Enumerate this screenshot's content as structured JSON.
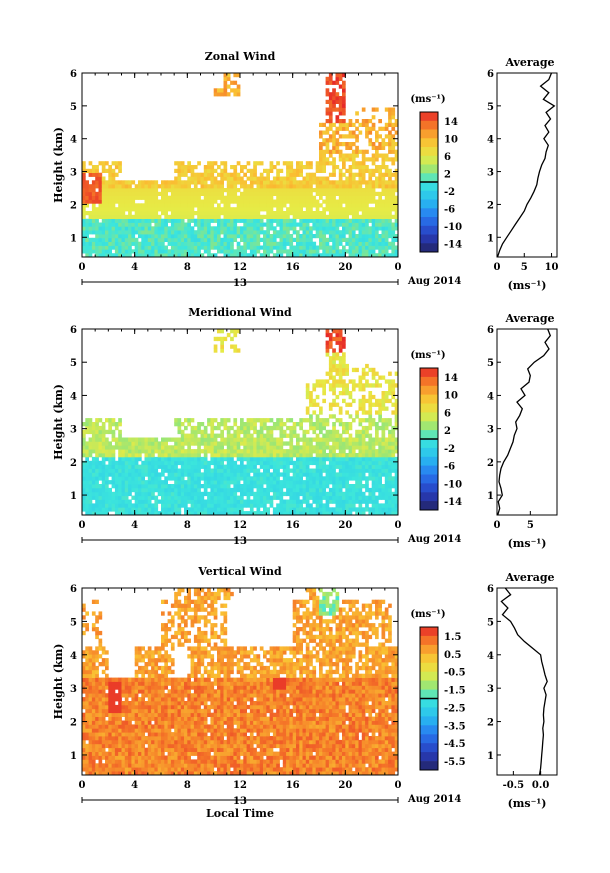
{
  "chart_data": [
    {
      "type": "heatmap",
      "title": "Zonal Wind",
      "ylabel": "Height (km)",
      "y_ticks": [
        "1",
        "2",
        "3",
        "4",
        "5",
        "6"
      ],
      "x_ticks": [
        "0",
        "4",
        "8",
        "12",
        "16",
        "20",
        "0"
      ],
      "date_mark": "13",
      "date_label": "Aug 2014",
      "xlim": [
        0,
        24
      ],
      "ylim": [
        0.4,
        6
      ],
      "colorbar": {
        "unit": "(ms⁻¹)",
        "ticks": [
          "14",
          "10",
          "6",
          "2",
          "-2",
          "-6",
          "-10",
          "-14"
        ],
        "range": [
          -16,
          16
        ]
      },
      "colormap": "jet",
      "approx_field": {
        "description_free_data": true,
        "low_layer_values_ms": {
          "height_km": [
            0.5,
            1.0,
            1.5,
            2.0,
            2.5,
            3.0,
            4.0,
            5.0,
            5.8
          ],
          "typical": [
            0,
            2,
            3,
            5,
            7,
            8,
            9,
            9,
            8
          ]
        }
      },
      "average_profile": {
        "title": "Average",
        "xlabel": "(ms⁻¹)",
        "x_ticks": [
          "0",
          "5",
          "10"
        ],
        "xlim": [
          0,
          11
        ],
        "height_km": [
          0.4,
          0.6,
          0.8,
          1.0,
          1.2,
          1.4,
          1.6,
          1.8,
          2.0,
          2.2,
          2.4,
          2.6,
          2.8,
          3.0,
          3.2,
          3.4,
          3.6,
          3.8,
          4.0,
          4.2,
          4.4,
          4.6,
          4.8,
          5.0,
          5.2,
          5.4,
          5.6,
          5.8,
          6.0
        ],
        "values": [
          0.1,
          0.5,
          1.0,
          1.8,
          2.6,
          3.4,
          4.2,
          5.0,
          5.5,
          6.2,
          6.8,
          7.3,
          7.5,
          7.8,
          8.2,
          8.8,
          9.0,
          9.4,
          8.6,
          9.5,
          8.8,
          9.8,
          9.0,
          10.5,
          8.5,
          9.5,
          8.0,
          9.5,
          10.0
        ]
      }
    },
    {
      "type": "heatmap",
      "title": "Meridional Wind",
      "ylabel": "Height (km)",
      "y_ticks": [
        "1",
        "2",
        "3",
        "4",
        "5",
        "6"
      ],
      "x_ticks": [
        "0",
        "4",
        "8",
        "12",
        "16",
        "20",
        "0"
      ],
      "date_mark": "13",
      "date_label": "Aug 2014",
      "xlim": [
        0,
        24
      ],
      "ylim": [
        0.4,
        6
      ],
      "colorbar": {
        "unit": "(ms⁻¹)",
        "ticks": [
          "14",
          "10",
          "6",
          "2",
          "-2",
          "-6",
          "-10",
          "-14"
        ],
        "range": [
          -16,
          16
        ]
      },
      "colormap": "jet",
      "average_profile": {
        "title": "Average",
        "xlabel": "(ms⁻¹)",
        "x_ticks": [
          "0",
          "5"
        ],
        "xlim": [
          0,
          9
        ],
        "height_km": [
          0.4,
          0.6,
          0.8,
          1.0,
          1.2,
          1.4,
          1.6,
          1.8,
          2.0,
          2.2,
          2.4,
          2.6,
          2.8,
          3.0,
          3.2,
          3.4,
          3.6,
          3.8,
          4.0,
          4.2,
          4.4,
          4.6,
          4.8,
          5.0,
          5.2,
          5.4,
          5.6,
          5.8,
          6.0
        ],
        "values": [
          0.1,
          0.4,
          0.2,
          0.8,
          0.6,
          0.3,
          0.4,
          0.6,
          1.0,
          1.6,
          2.0,
          2.4,
          2.6,
          3.0,
          2.8,
          3.4,
          3.8,
          3.0,
          4.2,
          3.6,
          4.8,
          5.0,
          4.6,
          5.6,
          7.0,
          7.8,
          7.2,
          8.0,
          7.6
        ]
      }
    },
    {
      "type": "heatmap",
      "title": "Vertical Wind",
      "ylabel": "Height (km)",
      "xlabel": "Local Time",
      "y_ticks": [
        "1",
        "2",
        "3",
        "4",
        "5",
        "6"
      ],
      "x_ticks": [
        "0",
        "4",
        "8",
        "12",
        "16",
        "20",
        "0"
      ],
      "date_mark": "13",
      "date_label": "Aug 2014",
      "xlim": [
        0,
        24
      ],
      "ylim": [
        0.4,
        6
      ],
      "colorbar": {
        "unit": "(ms⁻¹)",
        "ticks": [
          "1.5",
          "0.5",
          "-0.5",
          "-1.5",
          "-2.5",
          "-3.5",
          "-4.5",
          "-5.5"
        ],
        "range": [
          -6,
          2
        ]
      },
      "colormap": "jet",
      "average_profile": {
        "title": "Average",
        "xlabel": "(ms⁻¹)",
        "x_ticks": [
          "-0.5",
          "0.0"
        ],
        "xlim": [
          -0.8,
          0.3
        ],
        "height_km": [
          0.4,
          0.6,
          0.8,
          1.0,
          1.2,
          1.4,
          1.6,
          1.8,
          2.0,
          2.2,
          2.4,
          2.6,
          2.8,
          3.0,
          3.2,
          3.4,
          3.6,
          3.8,
          4.0,
          4.2,
          4.4,
          4.6,
          4.8,
          5.0,
          5.2,
          5.4,
          5.6,
          5.8,
          6.0
        ],
        "values": [
          -0.02,
          0.0,
          0.01,
          0.02,
          0.03,
          0.04,
          0.05,
          0.04,
          0.06,
          0.05,
          0.06,
          0.08,
          0.1,
          0.06,
          0.12,
          0.08,
          0.05,
          0.02,
          0.0,
          -0.15,
          -0.3,
          -0.42,
          -0.48,
          -0.55,
          -0.7,
          -0.6,
          -0.72,
          -0.55,
          -0.65
        ]
      }
    }
  ]
}
